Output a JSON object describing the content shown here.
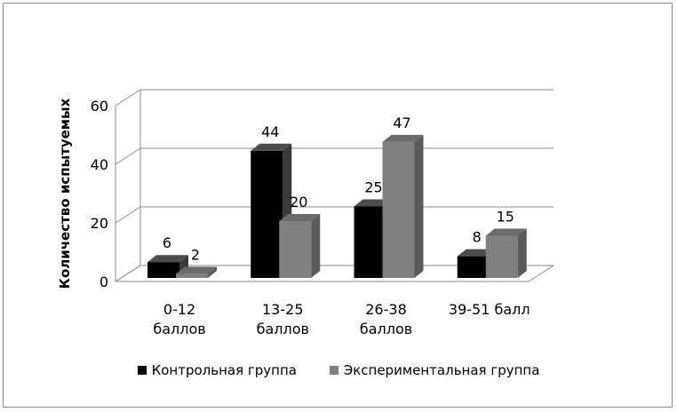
{
  "chart_data": {
    "type": "bar",
    "ylabel": "Количество испытуемых",
    "xlabel": "",
    "title": "",
    "categories": [
      [
        "0-12",
        "баллов"
      ],
      [
        "13-25",
        "баллов"
      ],
      [
        "26-38",
        "баллов"
      ],
      [
        "39-51 балл"
      ]
    ],
    "series": [
      {
        "name": "Контрольная группа",
        "values": [
          6,
          44,
          25,
          8
        ],
        "color": "#000000"
      },
      {
        "name": "Экспериментальная группа",
        "values": [
          2,
          20,
          47,
          15
        ],
        "color": "#808080"
      }
    ],
    "ylim": [
      0,
      60
    ],
    "yticks": [
      0,
      20,
      40,
      60
    ],
    "grid": true,
    "legend_position": "bottom",
    "style": "3d-column"
  }
}
